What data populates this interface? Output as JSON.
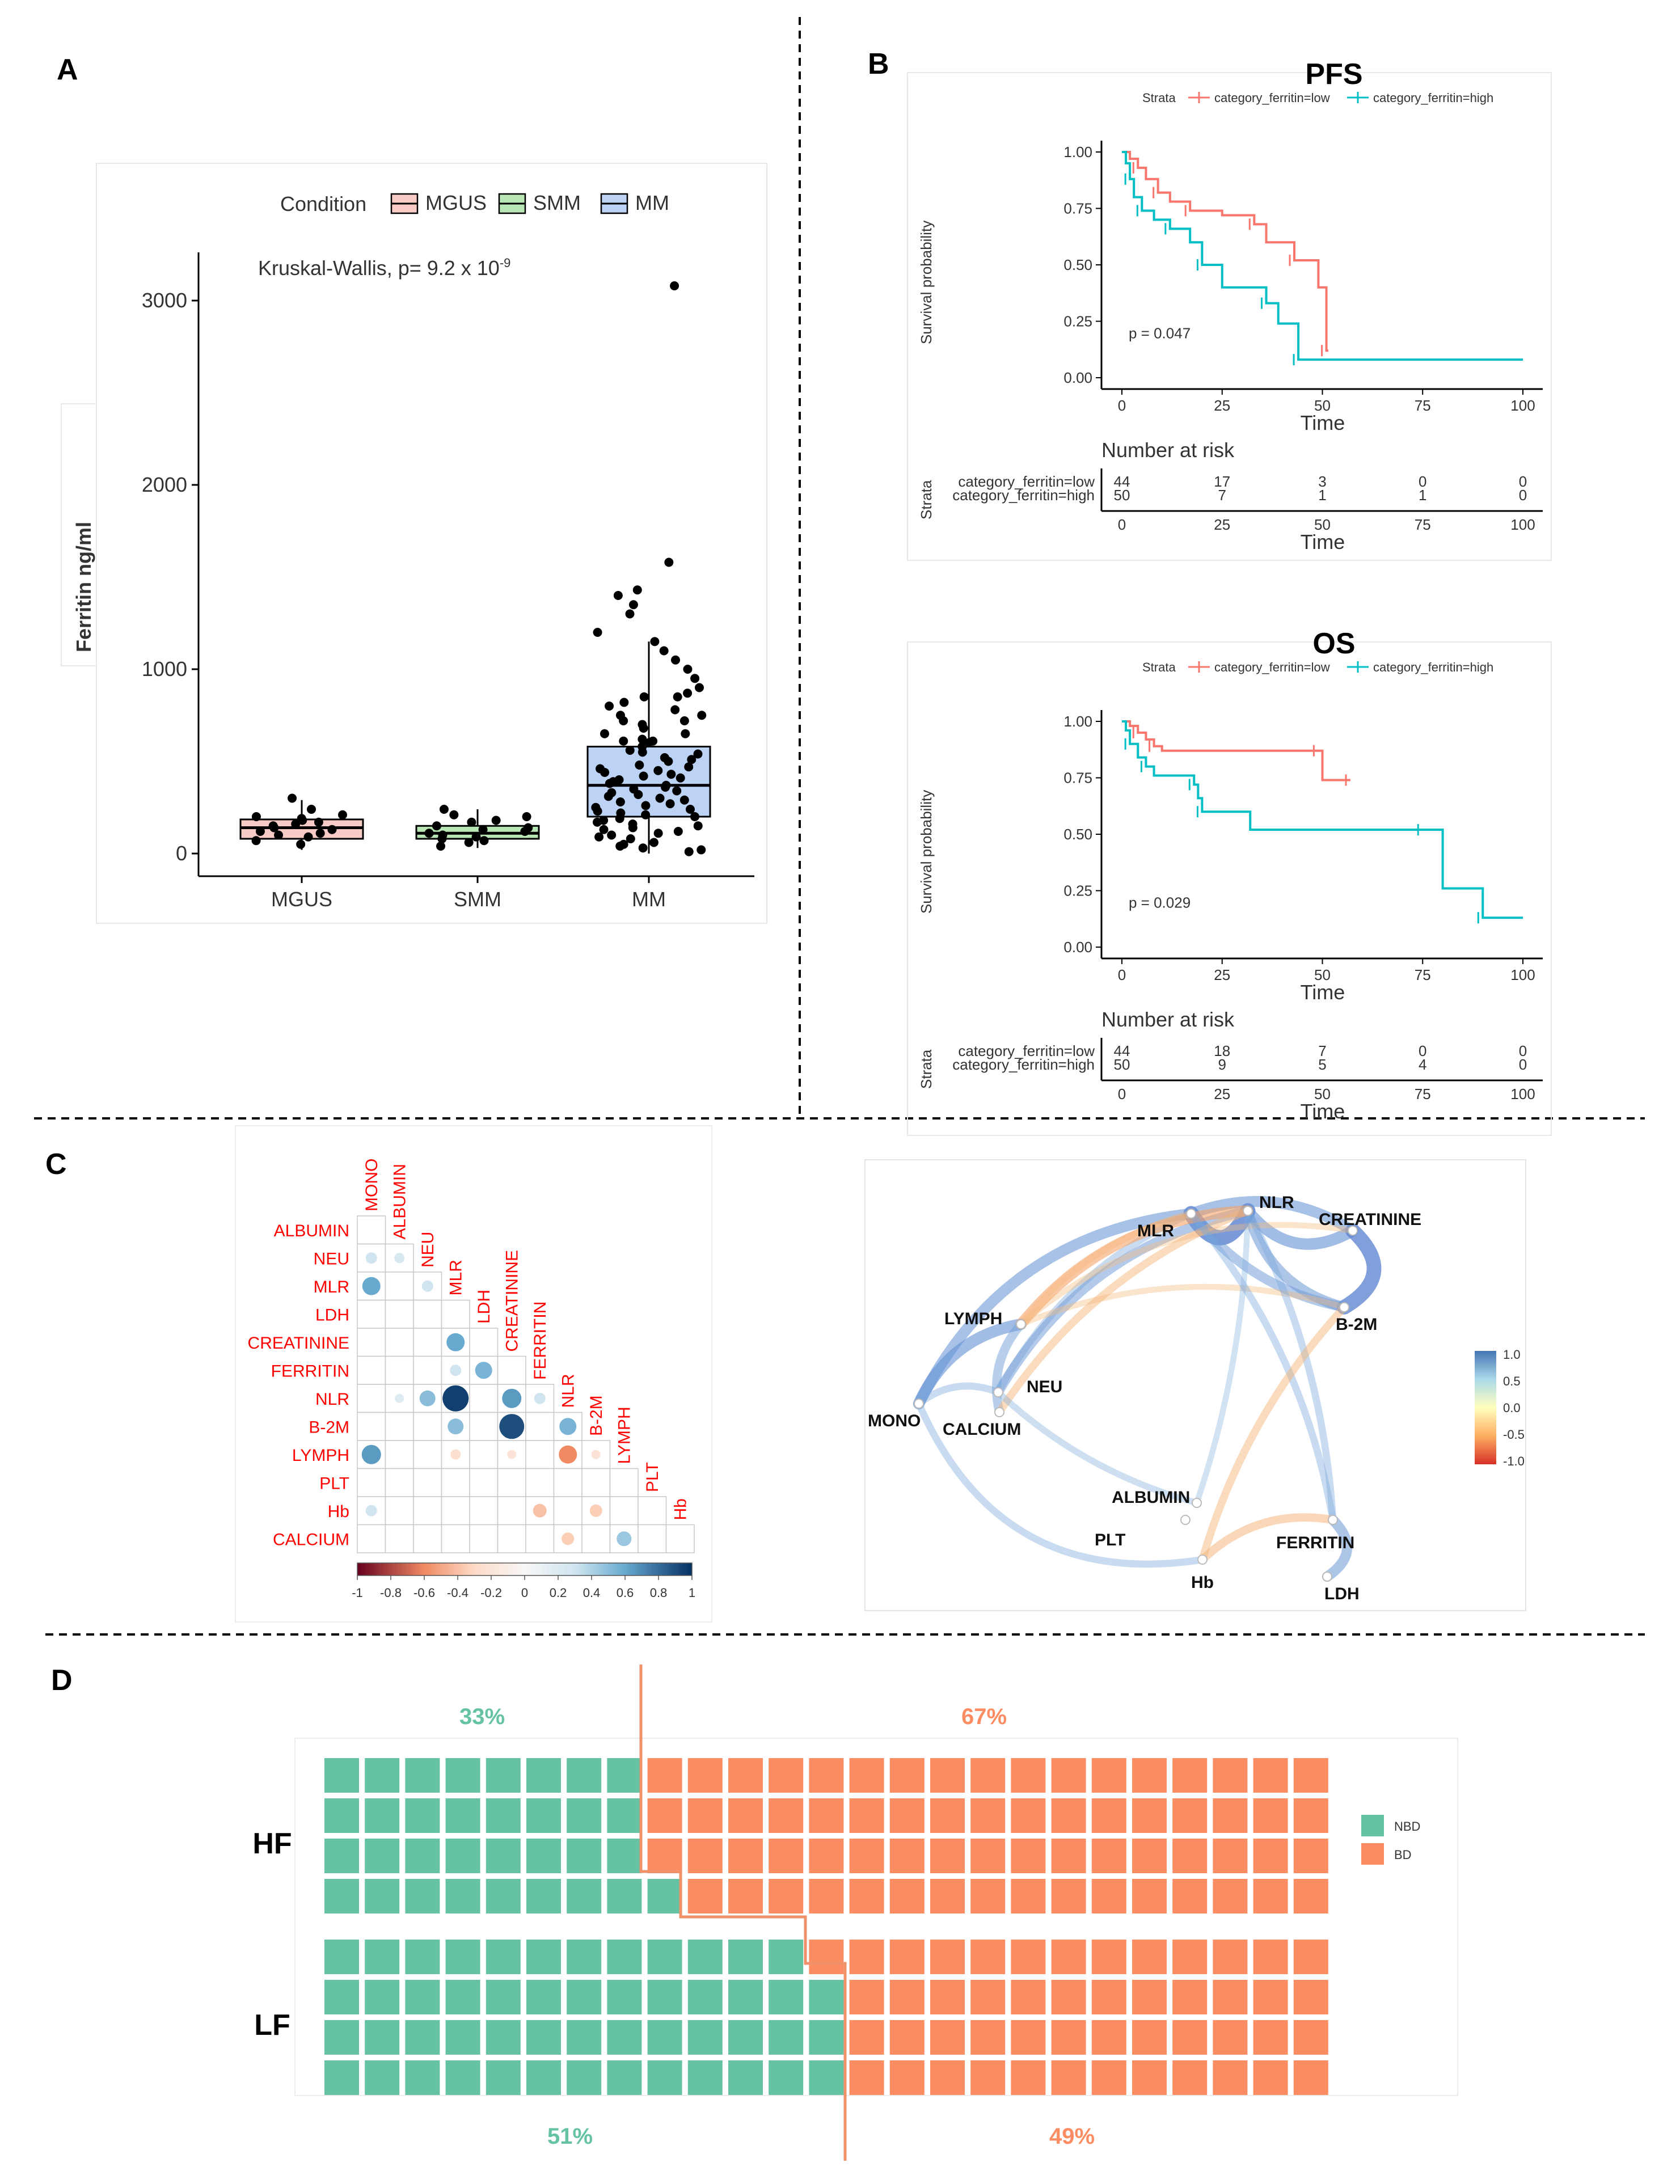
{
  "panels": {
    "A": "A",
    "B": "B",
    "C": "C",
    "D": "D"
  },
  "chart_data": [
    {
      "type": "boxplot",
      "panel": "A",
      "legend_title": "Condition",
      "legend_position": "top",
      "annotation": "Kruskal-Wallis, p= 9.2 x 10",
      "annotation_exponent": "-9",
      "ylabel": "Ferritin ng/ml",
      "ylim": [
        -150,
        3250
      ],
      "yticks": [
        0,
        1000,
        2000,
        3000
      ],
      "categories": [
        "MGUS",
        "SMM",
        "MM"
      ],
      "colors": [
        "#f8cbc6",
        "#b8e6b4",
        "#bdd3f6"
      ],
      "boxes": [
        {
          "name": "MGUS",
          "q1": 80,
          "median": 140,
          "q3": 185,
          "whisker_low": 20,
          "whisker_high": 290
        },
        {
          "name": "SMM",
          "q1": 80,
          "median": 110,
          "q3": 150,
          "whisker_low": 30,
          "whisker_high": 240
        },
        {
          "name": "MM",
          "q1": 200,
          "median": 370,
          "q3": 580,
          "whisker_low": 0,
          "whisker_high": 1150
        }
      ],
      "points": {
        "MGUS": [
          50,
          90,
          120,
          140,
          160,
          180,
          200,
          210,
          240,
          300,
          100,
          130,
          170,
          70,
          190,
          150,
          110
        ],
        "SMM": [
          40,
          70,
          90,
          100,
          110,
          120,
          140,
          150,
          170,
          200,
          240,
          60,
          130,
          180,
          210,
          80
        ],
        "MM": [
          20,
          30,
          40,
          60,
          80,
          100,
          120,
          140,
          160,
          180,
          200,
          220,
          240,
          260,
          280,
          300,
          320,
          340,
          360,
          380,
          400,
          420,
          440,
          460,
          480,
          500,
          520,
          540,
          560,
          580,
          600,
          620,
          650,
          680,
          700,
          720,
          750,
          780,
          800,
          820,
          850,
          870,
          900,
          950,
          1000,
          1050,
          1100,
          1150,
          1200,
          1300,
          1350,
          1400,
          1430,
          1580,
          3080,
          50,
          150,
          250,
          350,
          450,
          550,
          650,
          750,
          850,
          10,
          110,
          210,
          310,
          410,
          510,
          610,
          230,
          330,
          430,
          270,
          370,
          470,
          190,
          290,
          390,
          90,
          130,
          170,
          610,
          720
        ]
      }
    },
    {
      "type": "line",
      "panel": "B",
      "title": "PFS",
      "legend_title": "Strata",
      "series": [
        {
          "name": "category_ferritin=low",
          "color": "#f8766d",
          "steps": [
            [
              0,
              1.0
            ],
            [
              2,
              0.97
            ],
            [
              4,
              0.93
            ],
            [
              6,
              0.88
            ],
            [
              9,
              0.82
            ],
            [
              12,
              0.78
            ],
            [
              17,
              0.74
            ],
            [
              25,
              0.72
            ],
            [
              33,
              0.68
            ],
            [
              36,
              0.6
            ],
            [
              43,
              0.52
            ],
            [
              49,
              0.4
            ],
            [
              51,
              0.12
            ],
            [
              51.5,
              0.12
            ]
          ]
        },
        {
          "name": "category_ferritin=high",
          "color": "#00bfc4",
          "steps": [
            [
              0,
              1.0
            ],
            [
              1,
              0.95
            ],
            [
              2,
              0.88
            ],
            [
              3,
              0.8
            ],
            [
              5,
              0.74
            ],
            [
              8,
              0.7
            ],
            [
              12,
              0.66
            ],
            [
              17,
              0.6
            ],
            [
              20,
              0.5
            ],
            [
              25,
              0.4
            ],
            [
              36,
              0.33
            ],
            [
              39,
              0.24
            ],
            [
              44,
              0.08
            ],
            [
              100,
              0.08
            ]
          ]
        }
      ],
      "xlabel": "Time",
      "ylabel": "Survival probability",
      "xticks": [
        0,
        25,
        50,
        75,
        100
      ],
      "yticks": [
        "0.00",
        "0.25",
        "0.50",
        "0.75",
        "1.00"
      ],
      "pvalue": "p = 0.047",
      "risk_table": {
        "title": "Number at risk",
        "ylabel": "Strata",
        "rows": [
          {
            "label": "category_ferritin=low",
            "values": [
              "44",
              "17",
              "3",
              "0",
              "0"
            ]
          },
          {
            "label": "category_ferritin=high",
            "values": [
              "50",
              "7",
              "1",
              "1",
              "0"
            ]
          }
        ],
        "xlabel": "Time"
      }
    },
    {
      "type": "line",
      "panel": "B",
      "title": "OS",
      "legend_title": "Strata",
      "series": [
        {
          "name": "category_ferritin=low",
          "color": "#f8766d",
          "steps": [
            [
              0,
              1.0
            ],
            [
              2,
              0.98
            ],
            [
              4,
              0.95
            ],
            [
              6,
              0.92
            ],
            [
              8,
              0.89
            ],
            [
              10,
              0.87
            ],
            [
              49,
              0.87
            ],
            [
              50,
              0.74
            ],
            [
              57,
              0.74
            ]
          ]
        },
        {
          "name": "category_ferritin=high",
          "color": "#00bfc4",
          "steps": [
            [
              0,
              1.0
            ],
            [
              1,
              0.96
            ],
            [
              2,
              0.9
            ],
            [
              4,
              0.84
            ],
            [
              6,
              0.8
            ],
            [
              8,
              0.76
            ],
            [
              18,
              0.72
            ],
            [
              19,
              0.66
            ],
            [
              20,
              0.6
            ],
            [
              32,
              0.52
            ],
            [
              75,
              0.52
            ],
            [
              80,
              0.26
            ],
            [
              90,
              0.13
            ],
            [
              100,
              0.13
            ]
          ]
        }
      ],
      "xlabel": "Time",
      "ylabel": "Survival probability",
      "xticks": [
        0,
        25,
        50,
        75,
        100
      ],
      "yticks": [
        "0.00",
        "0.25",
        "0.50",
        "0.75",
        "1.00"
      ],
      "pvalue": "p = 0.029",
      "risk_table": {
        "title": "Number at risk",
        "ylabel": "Strata",
        "rows": [
          {
            "label": "category_ferritin=low",
            "values": [
              "44",
              "18",
              "7",
              "0",
              "0"
            ]
          },
          {
            "label": "category_ferritin=high",
            "values": [
              "50",
              "9",
              "5",
              "4",
              "0"
            ]
          }
        ],
        "xlabel": "Time"
      }
    },
    {
      "type": "heatmap",
      "panel": "C",
      "variables": [
        "MONO",
        "ALBUMIN",
        "NEU",
        "MLR",
        "LDH",
        "CREATININE",
        "FERRITIN",
        "NLR",
        "B-2M",
        "LYMPH",
        "PLT",
        "Hb",
        "CALCIUM"
      ],
      "colorbar_ticks": [
        "-1",
        "-0.8",
        "-0.6",
        "-0.4",
        "-0.2",
        "0",
        "0.2",
        "0.4",
        "0.6",
        "0.8",
        "1"
      ],
      "cells": [
        {
          "row": "NEU",
          "col": "MONO",
          "value": 0.3
        },
        {
          "row": "NEU",
          "col": "ALBUMIN",
          "value": 0.25
        },
        {
          "row": "MLR",
          "col": "MONO",
          "value": 0.6
        },
        {
          "row": "MLR",
          "col": "NEU",
          "value": 0.3
        },
        {
          "row": "CREATININE",
          "col": "MLR",
          "value": 0.6
        },
        {
          "row": "FERRITIN",
          "col": "MLR",
          "value": 0.3
        },
        {
          "row": "FERRITIN",
          "col": "LDH",
          "value": 0.55
        },
        {
          "row": "NLR",
          "col": "ALBUMIN",
          "value": 0.2
        },
        {
          "row": "NLR",
          "col": "NEU",
          "value": 0.5
        },
        {
          "row": "NLR",
          "col": "MLR",
          "value": 0.95
        },
        {
          "row": "NLR",
          "col": "CREATININE",
          "value": 0.65
        },
        {
          "row": "NLR",
          "col": "FERRITIN",
          "value": 0.3
        },
        {
          "row": "B-2M",
          "col": "MLR",
          "value": 0.5
        },
        {
          "row": "B-2M",
          "col": "CREATININE",
          "value": 0.9
        },
        {
          "row": "B-2M",
          "col": "NLR",
          "value": 0.55
        },
        {
          "row": "LYMPH",
          "col": "MONO",
          "value": 0.65
        },
        {
          "row": "LYMPH",
          "col": "MLR",
          "value": -0.25
        },
        {
          "row": "LYMPH",
          "col": "CREATININE",
          "value": -0.2
        },
        {
          "row": "LYMPH",
          "col": "NLR",
          "value": -0.6
        },
        {
          "row": "LYMPH",
          "col": "B-2M",
          "value": -0.2
        },
        {
          "row": "Hb",
          "col": "MONO",
          "value": 0.3
        },
        {
          "row": "Hb",
          "col": "FERRITIN",
          "value": -0.4
        },
        {
          "row": "Hb",
          "col": "B-2M",
          "value": -0.35
        },
        {
          "row": "CALCIUM",
          "col": "NLR",
          "value": -0.35
        },
        {
          "row": "CALCIUM",
          "col": "LYMPH",
          "value": 0.45
        }
      ]
    },
    {
      "type": "network",
      "panel": "C",
      "nodes": [
        "MLR",
        "NLR",
        "CREATININE",
        "B-2M",
        "LYMPH",
        "NEU",
        "MONO",
        "CALCIUM",
        "ALBUMIN",
        "PLT",
        "FERRITIN",
        "Hb",
        "LDH"
      ],
      "colorbar_ticks": [
        "1.0",
        "0.5",
        "0.0",
        "-0.5",
        "-1.0"
      ]
    },
    {
      "type": "waffle",
      "panel": "D",
      "rows": [
        {
          "label": "HF",
          "NBD": 33,
          "BD": 67,
          "pct_nbd": "33%",
          "pct_bd": "67%"
        },
        {
          "label": "LF",
          "NBD": 51,
          "BD": 49,
          "pct_nbd": "51%",
          "pct_bd": "49%"
        }
      ],
      "legend": [
        {
          "name": "NBD",
          "color": "#66c2a5"
        },
        {
          "name": "BD",
          "color": "#fc8d62"
        }
      ]
    }
  ]
}
